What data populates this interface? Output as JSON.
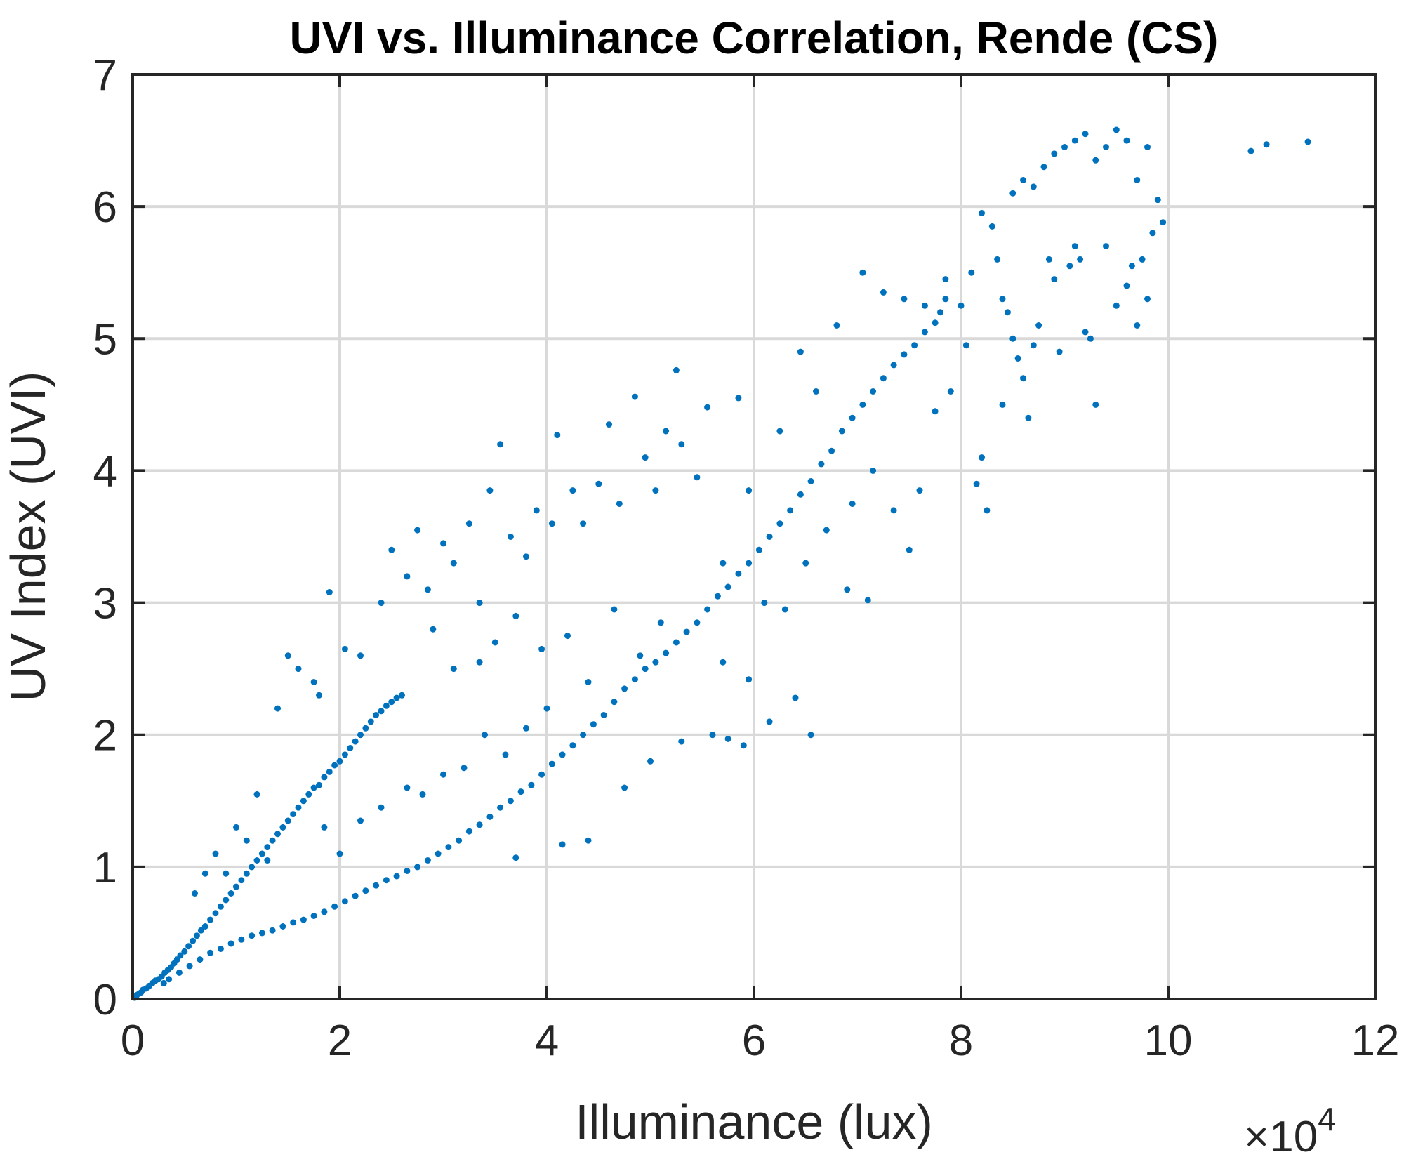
{
  "chart_data": {
    "type": "scatter",
    "title": "UVI vs. Illuminance Correlation, Rende (CS)",
    "xlabel": "Illuminance (lux)",
    "ylabel": "UV Index (UVI)",
    "x_exponent_label": "×10",
    "x_exponent_power": "4",
    "x_scale_factor": 10000,
    "xlim": [
      0,
      120000
    ],
    "ylim": [
      0,
      7
    ],
    "x_ticks": [
      0,
      20000,
      40000,
      60000,
      80000,
      100000,
      120000
    ],
    "x_tick_labels": [
      "0",
      "2",
      "4",
      "6",
      "8",
      "10",
      "12"
    ],
    "y_ticks": [
      0,
      1,
      2,
      3,
      4,
      5,
      6,
      7
    ],
    "y_tick_labels": [
      "0",
      "1",
      "2",
      "3",
      "4",
      "5",
      "6",
      "7"
    ],
    "grid": true,
    "legend": "none",
    "marker_color": "#0072BD",
    "series": [
      {
        "points": [
          [
            200,
            0.01
          ],
          [
            400,
            0.03
          ],
          [
            600,
            0.04
          ],
          [
            800,
            0.05
          ],
          [
            1000,
            0.07
          ],
          [
            1300,
            0.08
          ],
          [
            1600,
            0.1
          ],
          [
            1900,
            0.12
          ],
          [
            2200,
            0.14
          ],
          [
            2500,
            0.15
          ],
          [
            2800,
            0.17
          ],
          [
            3100,
            0.2
          ],
          [
            3400,
            0.22
          ],
          [
            3700,
            0.24
          ],
          [
            4000,
            0.27
          ],
          [
            4300,
            0.3
          ],
          [
            4600,
            0.33
          ],
          [
            5000,
            0.36
          ],
          [
            5400,
            0.4
          ],
          [
            5800,
            0.44
          ],
          [
            6200,
            0.48
          ],
          [
            6600,
            0.52
          ],
          [
            7000,
            0.55
          ],
          [
            7500,
            0.6
          ],
          [
            8000,
            0.65
          ],
          [
            8500,
            0.7
          ],
          [
            9000,
            0.75
          ],
          [
            9500,
            0.8
          ],
          [
            10000,
            0.85
          ],
          [
            10500,
            0.9
          ],
          [
            11000,
            0.95
          ],
          [
            11500,
            1.0
          ],
          [
            12000,
            1.05
          ],
          [
            12500,
            1.1
          ],
          [
            13000,
            1.15
          ],
          [
            13500,
            1.2
          ],
          [
            14000,
            1.25
          ],
          [
            14500,
            1.3
          ],
          [
            15000,
            1.35
          ],
          [
            15500,
            1.4
          ],
          [
            16000,
            1.45
          ],
          [
            16500,
            1.5
          ],
          [
            17000,
            1.55
          ],
          [
            17500,
            1.6
          ],
          [
            18000,
            1.62
          ],
          [
            18500,
            1.68
          ],
          [
            19000,
            1.72
          ],
          [
            19500,
            1.77
          ],
          [
            20000,
            1.8
          ],
          [
            20500,
            1.85
          ],
          [
            21000,
            1.9
          ],
          [
            21500,
            1.95
          ],
          [
            22000,
            2.0
          ],
          [
            22500,
            2.05
          ],
          [
            23000,
            2.1
          ],
          [
            23500,
            2.15
          ],
          [
            24000,
            2.18
          ],
          [
            24500,
            2.22
          ],
          [
            25000,
            2.25
          ],
          [
            25500,
            2.28
          ],
          [
            26000,
            2.3
          ],
          [
            3000,
            0.12
          ],
          [
            3500,
            0.15
          ],
          [
            4500,
            0.2
          ],
          [
            5500,
            0.25
          ],
          [
            6500,
            0.3
          ],
          [
            7500,
            0.35
          ],
          [
            8500,
            0.38
          ],
          [
            9500,
            0.42
          ],
          [
            10500,
            0.45
          ],
          [
            11500,
            0.48
          ],
          [
            12500,
            0.5
          ],
          [
            13500,
            0.52
          ],
          [
            14500,
            0.55
          ],
          [
            15500,
            0.58
          ],
          [
            16500,
            0.6
          ],
          [
            17500,
            0.63
          ],
          [
            18500,
            0.66
          ],
          [
            19500,
            0.7
          ],
          [
            20500,
            0.74
          ],
          [
            21500,
            0.78
          ],
          [
            22500,
            0.82
          ],
          [
            23500,
            0.86
          ],
          [
            24500,
            0.9
          ],
          [
            25500,
            0.93
          ],
          [
            26500,
            0.97
          ],
          [
            27500,
            1.0
          ],
          [
            28500,
            1.05
          ],
          [
            29500,
            1.1
          ],
          [
            30500,
            1.15
          ],
          [
            31500,
            1.2
          ],
          [
            32500,
            1.27
          ],
          [
            33500,
            1.32
          ],
          [
            34500,
            1.38
          ],
          [
            35500,
            1.45
          ],
          [
            36500,
            1.5
          ],
          [
            37500,
            1.57
          ],
          [
            38500,
            1.62
          ],
          [
            39500,
            1.7
          ],
          [
            40500,
            1.78
          ],
          [
            41500,
            1.85
          ],
          [
            42500,
            1.92
          ],
          [
            43500,
            2.0
          ],
          [
            44500,
            2.08
          ],
          [
            45500,
            2.15
          ],
          [
            46500,
            2.25
          ],
          [
            47500,
            2.35
          ],
          [
            48500,
            2.42
          ],
          [
            49500,
            2.5
          ],
          [
            50500,
            2.55
          ],
          [
            51500,
            2.62
          ],
          [
            52500,
            2.7
          ],
          [
            53500,
            2.78
          ],
          [
            54500,
            2.85
          ],
          [
            55500,
            2.95
          ],
          [
            56500,
            3.05
          ],
          [
            57500,
            3.12
          ],
          [
            58500,
            3.22
          ],
          [
            59500,
            3.3
          ],
          [
            60500,
            3.4
          ],
          [
            61500,
            3.5
          ],
          [
            62500,
            3.6
          ],
          [
            63500,
            3.7
          ],
          [
            64500,
            3.82
          ],
          [
            65500,
            3.92
          ],
          [
            66500,
            4.05
          ],
          [
            67500,
            4.15
          ],
          [
            68500,
            4.3
          ],
          [
            69500,
            4.4
          ],
          [
            70500,
            4.5
          ],
          [
            71500,
            4.6
          ],
          [
            72500,
            4.7
          ],
          [
            73500,
            4.8
          ],
          [
            74500,
            4.88
          ],
          [
            75500,
            4.95
          ],
          [
            76500,
            5.05
          ],
          [
            77500,
            5.12
          ],
          [
            78000,
            5.2
          ],
          [
            78500,
            5.3
          ],
          [
            14000,
            2.2
          ],
          [
            15000,
            2.6
          ],
          [
            16000,
            2.5
          ],
          [
            17500,
            2.4
          ],
          [
            18000,
            2.3
          ],
          [
            19000,
            3.08
          ],
          [
            20500,
            2.65
          ],
          [
            22000,
            2.6
          ],
          [
            24000,
            3.0
          ],
          [
            25000,
            3.4
          ],
          [
            26500,
            3.2
          ],
          [
            27500,
            3.55
          ],
          [
            28500,
            3.1
          ],
          [
            30000,
            3.45
          ],
          [
            31000,
            3.3
          ],
          [
            32500,
            3.6
          ],
          [
            33500,
            3.0
          ],
          [
            34500,
            3.85
          ],
          [
            35500,
            4.2
          ],
          [
            36500,
            3.5
          ],
          [
            38000,
            3.35
          ],
          [
            39000,
            3.7
          ],
          [
            40500,
            3.6
          ],
          [
            41000,
            4.27
          ],
          [
            42500,
            3.85
          ],
          [
            43500,
            3.6
          ],
          [
            45000,
            3.9
          ],
          [
            46000,
            4.35
          ],
          [
            47000,
            3.75
          ],
          [
            48500,
            4.56
          ],
          [
            49500,
            4.1
          ],
          [
            50500,
            3.85
          ],
          [
            51500,
            4.3
          ],
          [
            52500,
            4.76
          ],
          [
            53000,
            4.2
          ],
          [
            54500,
            3.95
          ],
          [
            55500,
            4.48
          ],
          [
            57000,
            3.3
          ],
          [
            58500,
            4.55
          ],
          [
            59500,
            3.85
          ],
          [
            29000,
            2.8
          ],
          [
            31000,
            2.5
          ],
          [
            33500,
            2.55
          ],
          [
            35000,
            2.7
          ],
          [
            37000,
            2.9
          ],
          [
            39500,
            2.65
          ],
          [
            42000,
            2.75
          ],
          [
            44000,
            2.4
          ],
          [
            46500,
            2.95
          ],
          [
            49000,
            2.6
          ],
          [
            51000,
            2.85
          ],
          [
            18500,
            1.3
          ],
          [
            20000,
            1.1
          ],
          [
            22000,
            1.35
          ],
          [
            24000,
            1.45
          ],
          [
            26500,
            1.6
          ],
          [
            28000,
            1.55
          ],
          [
            30000,
            1.7
          ],
          [
            32000,
            1.75
          ],
          [
            34000,
            2.0
          ],
          [
            36000,
            1.85
          ],
          [
            38000,
            2.05
          ],
          [
            40000,
            2.2
          ],
          [
            10000,
            1.3
          ],
          [
            12000,
            1.55
          ],
          [
            8000,
            1.1
          ],
          [
            7000,
            0.95
          ],
          [
            6000,
            0.8
          ],
          [
            9000,
            0.95
          ],
          [
            11000,
            1.2
          ],
          [
            13000,
            1.05
          ],
          [
            37000,
            1.07
          ],
          [
            41500,
            1.17
          ],
          [
            44000,
            1.2
          ],
          [
            47500,
            1.6
          ],
          [
            50000,
            1.8
          ],
          [
            53000,
            1.95
          ],
          [
            56000,
            2.0
          ],
          [
            57500,
            1.97
          ],
          [
            59000,
            1.92
          ],
          [
            61500,
            2.1
          ],
          [
            64000,
            2.28
          ],
          [
            65500,
            2.0
          ],
          [
            59500,
            2.42
          ],
          [
            57000,
            2.55
          ],
          [
            61000,
            3.0
          ],
          [
            63000,
            2.95
          ],
          [
            65000,
            3.3
          ],
          [
            67000,
            3.55
          ],
          [
            69000,
            3.1
          ],
          [
            71000,
            3.02
          ],
          [
            69500,
            3.75
          ],
          [
            71500,
            4.0
          ],
          [
            73500,
            3.7
          ],
          [
            75000,
            3.4
          ],
          [
            76000,
            3.85
          ],
          [
            77500,
            4.45
          ],
          [
            79000,
            4.6
          ],
          [
            80500,
            4.95
          ],
          [
            81500,
            3.9
          ],
          [
            82000,
            4.1
          ],
          [
            82500,
            3.7
          ],
          [
            62500,
            4.3
          ],
          [
            64500,
            4.9
          ],
          [
            66000,
            4.6
          ],
          [
            68000,
            5.1
          ],
          [
            70500,
            5.5
          ],
          [
            72500,
            5.35
          ],
          [
            74500,
            5.3
          ],
          [
            76500,
            5.25
          ],
          [
            78500,
            5.45
          ],
          [
            80000,
            5.25
          ],
          [
            81000,
            5.5
          ],
          [
            82000,
            5.95
          ],
          [
            83000,
            5.85
          ],
          [
            84000,
            5.3
          ],
          [
            85000,
            6.1
          ],
          [
            86000,
            6.2
          ],
          [
            87000,
            6.15
          ],
          [
            88000,
            6.3
          ],
          [
            89000,
            6.4
          ],
          [
            90000,
            6.45
          ],
          [
            91000,
            6.5
          ],
          [
            92000,
            6.55
          ],
          [
            93000,
            6.35
          ],
          [
            94000,
            6.45
          ],
          [
            95000,
            6.58
          ],
          [
            96000,
            6.5
          ],
          [
            97000,
            6.2
          ],
          [
            98000,
            6.45
          ],
          [
            99000,
            6.05
          ],
          [
            99500,
            5.88
          ],
          [
            98500,
            5.8
          ],
          [
            97500,
            5.6
          ],
          [
            96500,
            5.55
          ],
          [
            83500,
            5.6
          ],
          [
            84500,
            5.2
          ],
          [
            85500,
            4.85
          ],
          [
            86000,
            4.7
          ],
          [
            86500,
            4.4
          ],
          [
            87500,
            5.1
          ],
          [
            88500,
            5.6
          ],
          [
            89500,
            4.9
          ],
          [
            90500,
            5.55
          ],
          [
            91000,
            5.7
          ],
          [
            91500,
            5.6
          ],
          [
            92500,
            5.0
          ],
          [
            93000,
            4.5
          ],
          [
            94000,
            5.7
          ],
          [
            95000,
            5.25
          ],
          [
            96000,
            5.4
          ],
          [
            97000,
            5.1
          ],
          [
            98000,
            5.3
          ],
          [
            84000,
            4.5
          ],
          [
            85000,
            5.0
          ],
          [
            87000,
            4.95
          ],
          [
            89000,
            5.45
          ],
          [
            92000,
            5.05
          ],
          [
            108000,
            6.42
          ],
          [
            109500,
            6.47
          ],
          [
            113500,
            6.49
          ]
        ]
      }
    ]
  }
}
